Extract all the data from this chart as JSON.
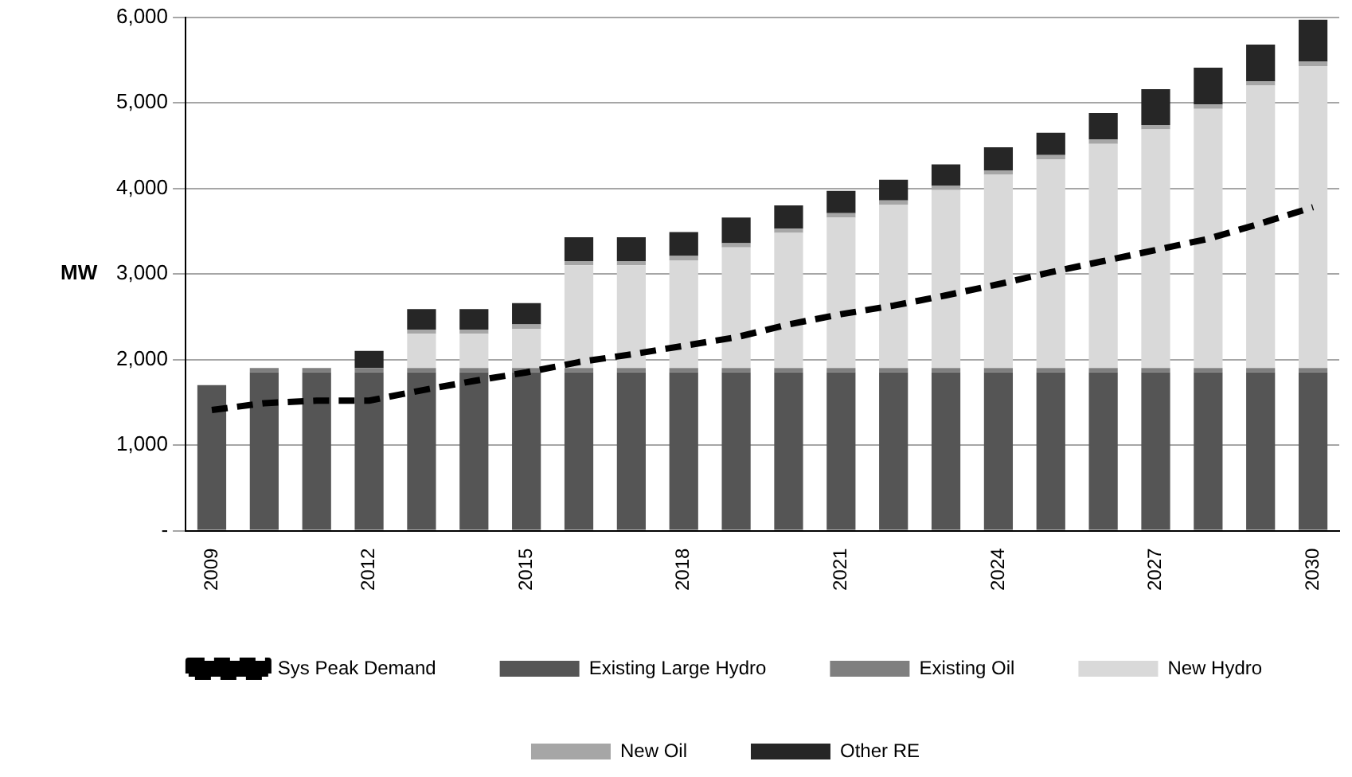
{
  "chart_data": {
    "type": "bar",
    "stacked": true,
    "ylabel": "MW",
    "categories": [
      "2009",
      null,
      null,
      "2012",
      null,
      null,
      "2015",
      null,
      null,
      "2018",
      null,
      null,
      "2021",
      null,
      null,
      "2024",
      null,
      null,
      "2027",
      null,
      null,
      "2030"
    ],
    "series": [
      {
        "name": "Existing Large Hydro",
        "color": "#555555",
        "values": [
          1700,
          1850,
          1850,
          1850,
          1850,
          1850,
          1850,
          1850,
          1850,
          1850,
          1850,
          1850,
          1850,
          1850,
          1850,
          1850,
          1850,
          1850,
          1850,
          1850,
          1850,
          1850
        ]
      },
      {
        "name": "Existing Oil",
        "color": "#7f7f7f",
        "values": [
          0,
          50,
          50,
          50,
          50,
          50,
          50,
          50,
          50,
          50,
          50,
          50,
          50,
          50,
          50,
          50,
          50,
          50,
          50,
          50,
          50,
          50
        ]
      },
      {
        "name": "New Hydro",
        "color": "#d9d9d9",
        "values": [
          0,
          0,
          0,
          0,
          400,
          400,
          460,
          1200,
          1200,
          1260,
          1410,
          1580,
          1760,
          1910,
          2080,
          2260,
          2440,
          2620,
          2790,
          3030,
          3300,
          3530
        ]
      },
      {
        "name": "New Oil",
        "color": "#a6a6a6",
        "values": [
          0,
          0,
          0,
          0,
          50,
          50,
          50,
          50,
          50,
          50,
          50,
          50,
          50,
          50,
          50,
          50,
          50,
          50,
          50,
          50,
          50,
          50
        ]
      },
      {
        "name": "Other RE",
        "color": "#262626",
        "values": [
          0,
          0,
          0,
          200,
          240,
          240,
          250,
          280,
          280,
          280,
          300,
          270,
          260,
          240,
          250,
          270,
          260,
          310,
          420,
          430,
          430,
          490
        ]
      },
      {
        "name": "Sys Peak Demand",
        "type": "line",
        "color": "#000000",
        "line_style": "dashed",
        "marker": "none",
        "values": [
          1410,
          1490,
          1520,
          1520,
          1640,
          1750,
          1850,
          1970,
          2060,
          2160,
          2260,
          2410,
          2530,
          2630,
          2750,
          2880,
          3020,
          3150,
          3280,
          3410,
          3590,
          3780
        ]
      }
    ],
    "ylim": [
      0,
      6000
    ],
    "yticks": [
      {
        "value": 0,
        "label": "-"
      },
      {
        "value": 1000,
        "label": "1,000"
      },
      {
        "value": 2000,
        "label": "2,000"
      },
      {
        "value": 3000,
        "label": "3,000"
      },
      {
        "value": 4000,
        "label": "4,000"
      },
      {
        "value": 5000,
        "label": "5,000"
      },
      {
        "value": 6000,
        "label": "6,000"
      }
    ],
    "grid": "y",
    "legend": "bottom"
  }
}
